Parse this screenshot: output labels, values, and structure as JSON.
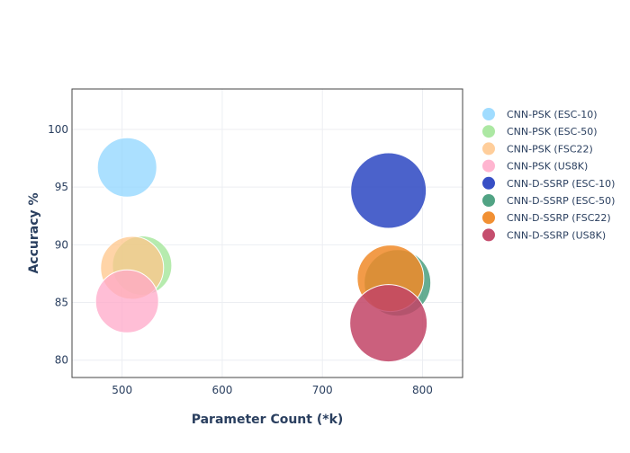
{
  "chart_data": {
    "type": "scatter",
    "xlabel": "Parameter Count (*k)",
    "ylabel": "Accuracy %",
    "xlim": [
      450,
      840
    ],
    "ylim": [
      78.5,
      103.5
    ],
    "x_ticks": [
      500,
      600,
      700,
      800
    ],
    "y_ticks": [
      80,
      85,
      90,
      95,
      100
    ],
    "grid": true,
    "legend_position": "right",
    "series": [
      {
        "name": "CNN-PSK (ESC-10)",
        "color": "#8fd6ff",
        "opacity": 0.75,
        "points": [
          {
            "x": 505,
            "y": 96.7,
            "size": 33
          }
        ]
      },
      {
        "name": "CNN-PSK (ESC-50)",
        "color": "#9ee493",
        "opacity": 0.75,
        "points": [
          {
            "x": 520,
            "y": 88.2,
            "size": 33
          }
        ]
      },
      {
        "name": "CNN-PSK (FSC22)",
        "color": "#ffc58a",
        "opacity": 0.75,
        "points": [
          {
            "x": 510,
            "y": 88.0,
            "size": 35
          }
        ]
      },
      {
        "name": "CNN-PSK (US8K)",
        "color": "#ffa8c8",
        "opacity": 0.75,
        "points": [
          {
            "x": 505,
            "y": 85.1,
            "size": 35
          }
        ]
      },
      {
        "name": "CNN-D-SSRP (ESC-10)",
        "color": "#2c46c2",
        "opacity": 0.85,
        "points": [
          {
            "x": 766,
            "y": 94.7,
            "size": 42
          }
        ]
      },
      {
        "name": "CNN-D-SSRP (ESC-50)",
        "color": "#3e9977",
        "opacity": 0.8,
        "points": [
          {
            "x": 775,
            "y": 86.7,
            "size": 37
          }
        ]
      },
      {
        "name": "CNN-D-SSRP (FSC22)",
        "color": "#f08a28",
        "opacity": 0.85,
        "points": [
          {
            "x": 768,
            "y": 87.1,
            "size": 37
          }
        ]
      },
      {
        "name": "CNN-D-SSRP (US8K)",
        "color": "#c24466",
        "opacity": 0.85,
        "points": [
          {
            "x": 766,
            "y": 83.2,
            "size": 43
          }
        ]
      }
    ]
  }
}
